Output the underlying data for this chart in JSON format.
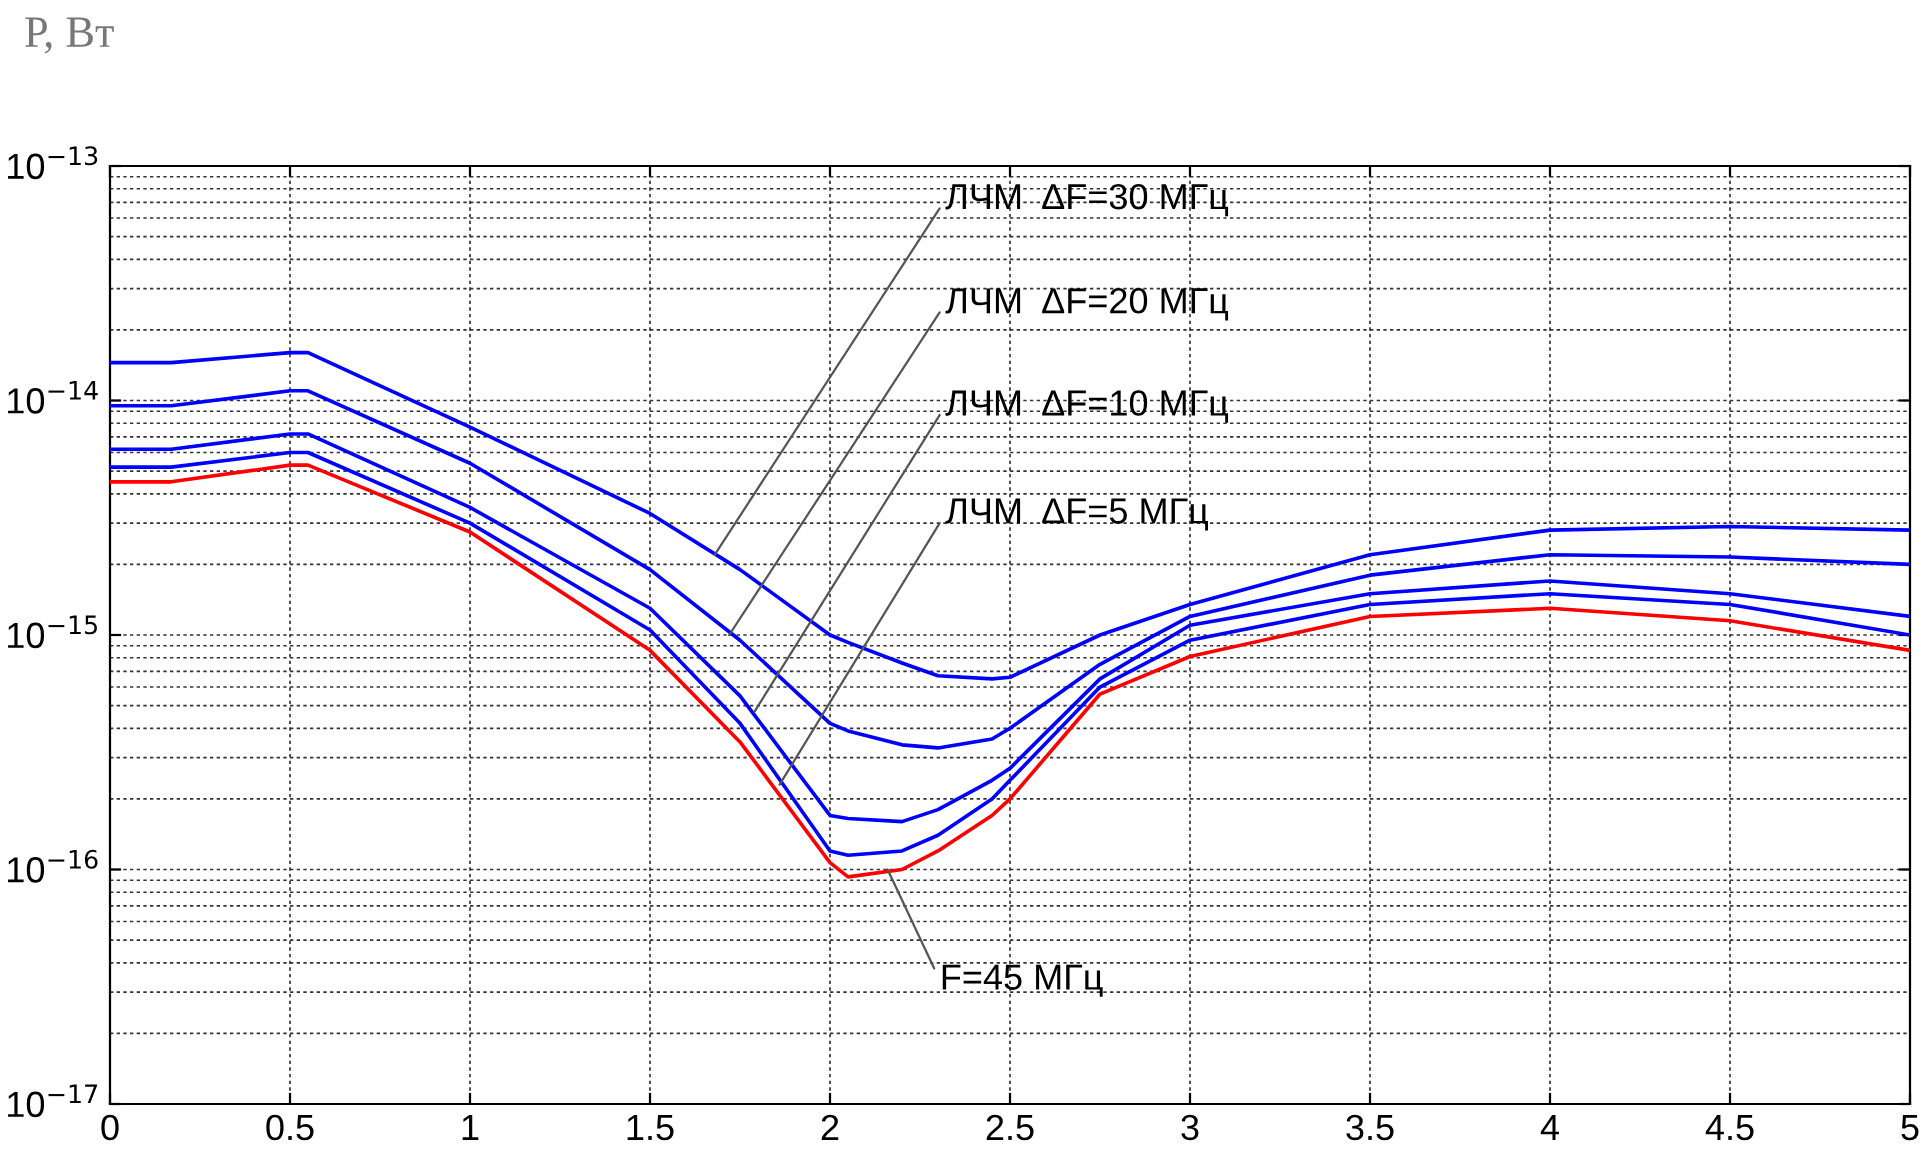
{
  "chart_data": {
    "type": "line",
    "ylabel": "Р, Вт",
    "log": "y",
    "grid": true,
    "marker": "none",
    "line_style": "solid",
    "x": [
      0,
      0.17,
      0.5,
      0.55,
      1,
      1.5,
      1.75,
      2,
      2.05,
      2.2,
      2.3,
      2.45,
      2.5,
      2.75,
      3,
      3.5,
      4,
      4.5,
      5
    ],
    "xlim": [
      0,
      5
    ],
    "xticks": [
      0,
      0.5,
      1,
      1.5,
      2,
      2.5,
      3,
      3.5,
      4,
      4.5,
      5
    ],
    "ylim": [
      1e-17,
      1e-13
    ],
    "yticks": [
      {
        "value": 1e-17,
        "label": "10$^{−17}$"
      },
      {
        "value": 1e-16,
        "label": "10$^{−16}$"
      },
      {
        "value": 1e-15,
        "label": "10$^{−15}$"
      },
      {
        "value": 1e-14,
        "label": "10$^{−14}$"
      },
      {
        "value": 1e-13,
        "label": "10$^{−13}$"
      }
    ],
    "series": [
      {
        "color": "#0000ff",
        "values": [
          1.45e-14,
          1.45e-14,
          1.6e-14,
          1.6e-14,
          7.7e-15,
          3.3e-15,
          1.9e-15,
          1e-15,
          9.3e-16,
          7.6e-16,
          6.7e-16,
          6.5e-16,
          6.6e-16,
          1e-15,
          1.35e-15,
          2.2e-15,
          2.8e-15,
          2.9e-15,
          2.8e-15
        ]
      },
      {
        "color": "#0000ff",
        "values": [
          9.5e-15,
          9.5e-15,
          1.1e-14,
          1.1e-14,
          5.4e-15,
          1.9e-15,
          9.5e-16,
          4.2e-16,
          3.9e-16,
          3.4e-16,
          3.3e-16,
          3.6e-16,
          4e-16,
          7.5e-16,
          1.2e-15,
          1.8e-15,
          2.2e-15,
          2.15e-15,
          2e-15
        ]
      },
      {
        "color": "#0000ff",
        "values": [
          6.2e-15,
          6.2e-15,
          7.2e-15,
          7.2e-15,
          3.5e-15,
          1.3e-15,
          5.5e-16,
          1.7e-16,
          1.65e-16,
          1.6e-16,
          1.8e-16,
          2.4e-16,
          2.7e-16,
          6.5e-16,
          1.1e-15,
          1.5e-15,
          1.7e-15,
          1.5e-15,
          1.2e-15
        ]
      },
      {
        "color": "#0000ff",
        "values": [
          5.2e-15,
          5.2e-15,
          6e-15,
          6e-15,
          3e-15,
          1.05e-15,
          4.2e-16,
          1.2e-16,
          1.15e-16,
          1.2e-16,
          1.4e-16,
          2e-16,
          2.4e-16,
          6e-16,
          9.5e-16,
          1.35e-15,
          1.5e-15,
          1.35e-15,
          1e-15
        ]
      },
      {
        "color": "#ff0000",
        "values": [
          4.5e-15,
          4.5e-15,
          5.3e-15,
          5.3e-15,
          2.75e-15,
          8.6e-16,
          3.5e-16,
          1.07e-16,
          9.3e-17,
          1e-16,
          1.2e-16,
          1.7e-16,
          2e-16,
          5.6e-16,
          8.1e-16,
          1.2e-15,
          1.3e-15,
          1.15e-15,
          8.6e-16
        ]
      }
    ],
    "annotations": [
      {
        "text": "ЛЧМ  ΔF=30 МГц",
        "x": 1.68,
        "y": 2.2e-15
      },
      {
        "text": "ЛЧМ  ΔF=20 МГц",
        "x": 1.72,
        "y": 1e-15
      },
      {
        "text": "ЛЧМ  ΔF=10 МГц",
        "x": 1.79,
        "y": 4.7e-16
      },
      {
        "text": "ЛЧМ  ΔF=5 МГц",
        "x": 1.86,
        "y": 2.3e-16
      },
      {
        "text": "F=45 МГц",
        "x": 2.16,
        "y": 1e-16
      }
    ]
  }
}
